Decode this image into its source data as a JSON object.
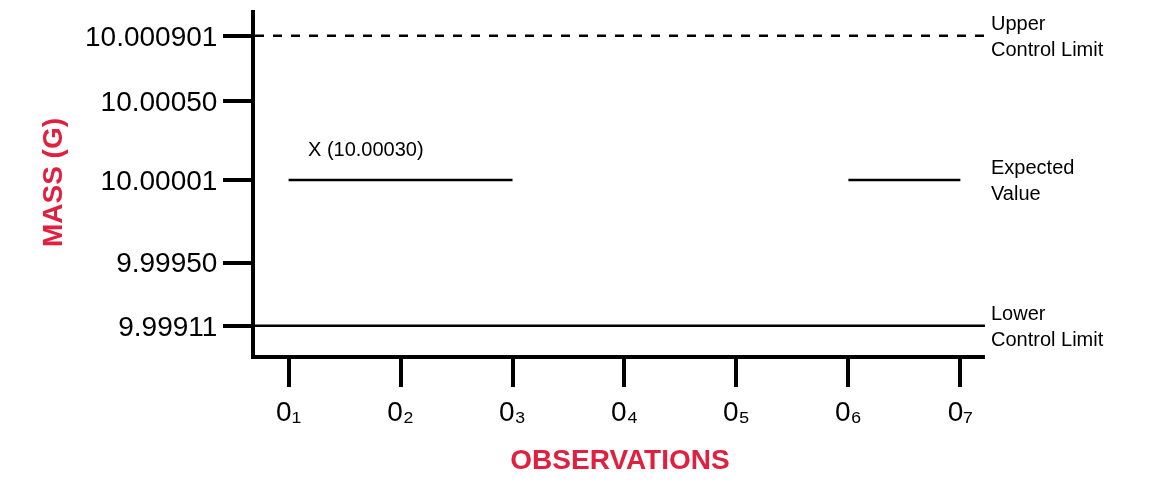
{
  "chart_data": {
    "type": "line",
    "xlabel": "OBSERVATIONS",
    "ylabel": "MASS (G)",
    "categories": [
      "0₁",
      "0₂",
      "0₃",
      "0₄",
      "0₅",
      "0₆",
      "0₇"
    ],
    "ylim": [
      9.99893,
      10.00106
    ],
    "yticks": [
      9.99911,
      {
        "value": 9.9995,
        "label": "9.99950"
      },
      10.00001,
      {
        "value": 10.0005,
        "label": "10.00050"
      },
      10.000901
    ],
    "series": [
      {
        "name": "Expected Value",
        "color": "#000000",
        "values": [
          10.00001,
          10.00001,
          10.00001,
          null,
          null,
          10.00001,
          10.00001
        ]
      }
    ],
    "ref_lines": [
      {
        "axis": "y",
        "value": 10.000901,
        "label": "Upper Control Limit",
        "color": "#000000",
        "line_style": "dashed"
      },
      {
        "axis": "y",
        "value": 9.99911,
        "label": "Lower Control Limit",
        "color": "#000000",
        "line_style": "solid"
      }
    ],
    "annotations": [
      "X (10.00030)"
    ],
    "marker": "none",
    "legend": false
  }
}
